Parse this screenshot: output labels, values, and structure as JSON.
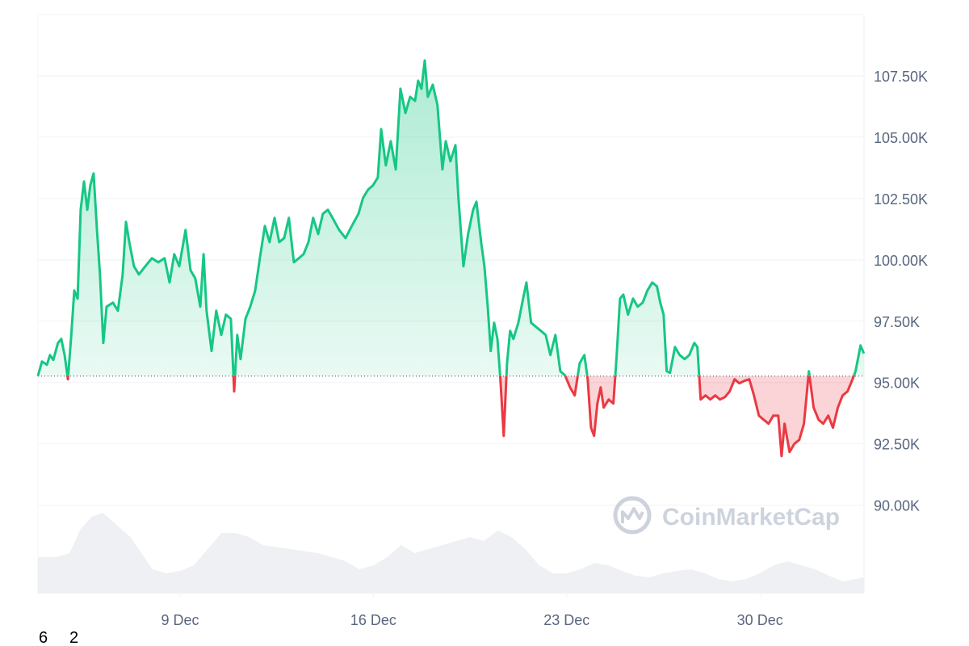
{
  "chart_data": {
    "type": "line",
    "x": [
      3.85,
      4.0,
      4.18,
      4.29,
      4.41,
      4.58,
      4.7,
      4.82,
      4.94,
      5.05,
      5.17,
      5.29,
      5.4,
      5.52,
      5.64,
      5.75,
      5.87,
      5.99,
      6.1,
      6.22,
      6.34,
      6.57,
      6.75,
      6.92,
      7.04,
      7.16,
      7.33,
      7.51,
      7.74,
      7.98,
      8.21,
      8.44,
      8.62,
      8.79,
      8.97,
      9.2,
      9.38,
      9.55,
      9.73,
      9.85,
      9.96,
      10.14,
      10.31,
      10.49,
      10.66,
      10.84,
      10.96,
      11.07,
      11.19,
      11.37,
      11.54,
      11.72,
      11.89,
      12.07,
      12.24,
      12.42,
      12.59,
      12.77,
      12.94,
      13.12,
      13.3,
      13.47,
      13.65,
      13.82,
      14.0,
      14.17,
      14.35,
      14.52,
      14.76,
      14.99,
      15.22,
      15.46,
      15.63,
      15.81,
      15.98,
      16.16,
      16.28,
      16.45,
      16.63,
      16.81,
      16.98,
      17.16,
      17.33,
      17.51,
      17.62,
      17.74,
      17.86,
      17.97,
      18.15,
      18.32,
      18.5,
      18.62,
      18.79,
      18.97,
      19.08,
      19.26,
      19.43,
      19.61,
      19.73,
      19.9,
      20.02,
      20.14,
      20.25,
      20.37,
      20.49,
      20.6,
      20.72,
      20.84,
      20.95,
      21.07,
      21.25,
      21.42,
      21.54,
      21.71,
      21.89,
      22.06,
      22.24,
      22.41,
      22.59,
      22.77,
      22.94,
      23.12,
      23.29,
      23.47,
      23.64,
      23.76,
      23.88,
      23.99,
      24.11,
      24.23,
      24.34,
      24.52,
      24.69,
      24.81,
      24.93,
      25.05,
      25.22,
      25.4,
      25.57,
      25.75,
      25.92,
      26.1,
      26.27,
      26.39,
      26.51,
      26.62,
      26.74,
      26.92,
      27.09,
      27.27,
      27.44,
      27.62,
      27.73,
      27.85,
      28.03,
      28.2,
      28.38,
      28.55,
      28.73,
      28.9,
      29.08,
      29.25,
      29.43,
      29.61,
      29.78,
      29.96,
      30.13,
      30.31,
      30.48,
      30.66,
      30.78,
      30.89,
      31.07,
      31.24,
      31.42,
      31.59,
      31.77,
      31.94,
      32.12,
      32.29,
      32.47,
      32.64,
      32.82,
      32.99,
      33.17,
      33.35,
      33.46,
      33.64,
      33.76
    ],
    "values": [
      95263,
      95855,
      95724,
      96119,
      95921,
      96612,
      96777,
      96119,
      95132,
      96777,
      98751,
      98422,
      102041,
      103192,
      102041,
      103028,
      103521,
      101218,
      99409,
      96612,
      98093,
      98257,
      97928,
      99409,
      101547,
      100725,
      99738,
      99409,
      99738,
      100067,
      99902,
      100067,
      99080,
      100231,
      99738,
      101218,
      99573,
      99244,
      98093,
      100231,
      97928,
      96283,
      97928,
      96941,
      97764,
      97599,
      94638,
      96941,
      95954,
      97599,
      98093,
      98751,
      100067,
      101383,
      100725,
      101712,
      100725,
      100889,
      101712,
      99902,
      100067,
      100231,
      100725,
      101712,
      101054,
      101876,
      102041,
      101712,
      101218,
      100889,
      101383,
      101876,
      102534,
      102863,
      103028,
      103357,
      105331,
      103850,
      104837,
      103686,
      106976,
      105989,
      106647,
      106482,
      107305,
      106976,
      108127,
      106647,
      107140,
      106318,
      103686,
      104837,
      104015,
      104673,
      102534,
      99738,
      101054,
      102041,
      102370,
      100725,
      99738,
      98093,
      96283,
      97435,
      96777,
      95132,
      92829,
      95790,
      97106,
      96777,
      97435,
      98422,
      99080,
      97435,
      97270,
      97106,
      96941,
      96119,
      96941,
      95461,
      95296,
      94803,
      94474,
      95790,
      96119,
      95132,
      93158,
      92829,
      94145,
      94803,
      93980,
      94309,
      94145,
      96119,
      98422,
      98586,
      97764,
      98422,
      98093,
      98257,
      98751,
      99080,
      98915,
      98257,
      97764,
      95461,
      95395,
      96448,
      96119,
      95954,
      96119,
      96612,
      96448,
      94309,
      94474,
      94309,
      94474,
      94309,
      94408,
      94638,
      95132,
      94967,
      95066,
      95132,
      94474,
      93651,
      93487,
      93322,
      93651,
      93651,
      92006,
      93322,
      92171,
      92500,
      92664,
      93322,
      95461,
      93980,
      93487,
      93322,
      93651,
      93158,
      93980,
      94474,
      94638,
      95132,
      95461,
      96513,
      96184
    ],
    "color": "#16c784",
    "down_color": "#ea3943",
    "xlim": [
      3.854,
      33.766
    ],
    "xticks": [
      {
        "value": 9,
        "label": "9 Dec"
      },
      {
        "value": 16,
        "label": "16 Dec"
      },
      {
        "value": 23,
        "label": "23 Dec"
      },
      {
        "value": 30,
        "label": "30 Dec"
      }
    ],
    "ylim": [
      86400,
      110000
    ],
    "yticks": [
      {
        "value": 90000,
        "label": "90.00K"
      },
      {
        "value": 92500,
        "label": "92.50K"
      },
      {
        "value": 95000,
        "label": "95.00K"
      },
      {
        "value": 97500,
        "label": "97.50K"
      },
      {
        "value": 100000,
        "label": "100.00K"
      },
      {
        "value": 102500,
        "label": "102.50K"
      },
      {
        "value": 105000,
        "label": "105.00K"
      },
      {
        "value": 107500,
        "label": "107.50K"
      }
    ],
    "grid": true,
    "volume": {
      "x": [
        3.85,
        4.5,
        5.0,
        5.4,
        5.8,
        6.2,
        6.7,
        7.2,
        7.6,
        8.0,
        8.5,
        9.0,
        9.5,
        10.0,
        10.5,
        11.0,
        11.5,
        12.0,
        13.0,
        14.0,
        15.0,
        15.5,
        16.0,
        16.5,
        17.0,
        17.5,
        18.0,
        18.5,
        19.0,
        19.5,
        20.0,
        20.5,
        21.0,
        21.5,
        22.0,
        22.5,
        23.0,
        23.5,
        24.0,
        24.5,
        25.0,
        25.5,
        26.0,
        26.5,
        27.0,
        27.5,
        28.0,
        28.5,
        29.0,
        29.5,
        30.0,
        30.5,
        31.0,
        31.5,
        32.0,
        32.5,
        33.0,
        33.76
      ],
      "values": [
        45,
        45,
        50,
        80,
        95,
        100,
        85,
        70,
        50,
        30,
        25,
        28,
        35,
        55,
        75,
        75,
        70,
        60,
        55,
        50,
        40,
        30,
        35,
        45,
        60,
        50,
        55,
        60,
        65,
        70,
        65,
        78,
        70,
        55,
        35,
        25,
        25,
        30,
        38,
        35,
        28,
        22,
        20,
        25,
        28,
        30,
        25,
        18,
        15,
        18,
        25,
        35,
        40,
        35,
        30,
        22,
        15,
        20
      ],
      "ylim": [
        0,
        130
      ],
      "color": "#eff0f3"
    },
    "watermark": "CoinMarketCap"
  },
  "footer": [
    "6",
    "2"
  ]
}
